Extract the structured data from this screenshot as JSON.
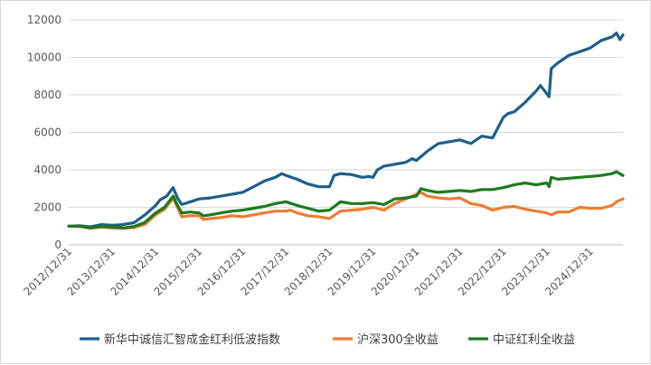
{
  "chart_data": {
    "type": "line",
    "title": "",
    "xlabel": "",
    "ylabel": "",
    "ylim": [
      0,
      12000
    ],
    "yticks": [
      0,
      2000,
      4000,
      6000,
      8000,
      10000,
      12000
    ],
    "ytick_labels": [
      "0",
      "2000",
      "4000",
      "6000",
      "8000",
      "10000",
      "12000"
    ],
    "xlim": [
      2012.997,
      2025.75
    ],
    "xticks": [
      "2012/12/31",
      "2013/12/31",
      "2014/12/31",
      "2015/12/31",
      "2016/12/31",
      "2017/12/31",
      "2018/12/31",
      "2019/12/31",
      "2020/12/31",
      "2021/12/31",
      "2022/12/31",
      "2023/12/31",
      "2024/12/31"
    ],
    "grid": "horizontal",
    "legend_position": "bottom",
    "series": [
      {
        "name": "新华中诚信汇智成金红利低波指数",
        "color": "#1f5f8b",
        "points": [
          [
            2012.997,
            1000
          ],
          [
            2013.25,
            1020
          ],
          [
            2013.5,
            960
          ],
          [
            2013.75,
            1080
          ],
          [
            2013.997,
            1040
          ],
          [
            2014.25,
            1080
          ],
          [
            2014.5,
            1180
          ],
          [
            2014.75,
            1600
          ],
          [
            2014.997,
            2100
          ],
          [
            2015.1,
            2400
          ],
          [
            2015.25,
            2600
          ],
          [
            2015.4,
            3050
          ],
          [
            2015.5,
            2500
          ],
          [
            2015.6,
            2150
          ],
          [
            2015.8,
            2300
          ],
          [
            2015.997,
            2450
          ],
          [
            2016.25,
            2500
          ],
          [
            2016.5,
            2600
          ],
          [
            2016.75,
            2700
          ],
          [
            2016.997,
            2800
          ],
          [
            2017.25,
            3100
          ],
          [
            2017.5,
            3400
          ],
          [
            2017.75,
            3600
          ],
          [
            2017.9,
            3800
          ],
          [
            2017.997,
            3700
          ],
          [
            2018.25,
            3500
          ],
          [
            2018.5,
            3250
          ],
          [
            2018.75,
            3100
          ],
          [
            2018.997,
            3100
          ],
          [
            2019.1,
            3700
          ],
          [
            2019.25,
            3800
          ],
          [
            2019.5,
            3750
          ],
          [
            2019.75,
            3600
          ],
          [
            2019.9,
            3650
          ],
          [
            2019.997,
            3600
          ],
          [
            2020.1,
            4000
          ],
          [
            2020.25,
            4200
          ],
          [
            2020.5,
            4300
          ],
          [
            2020.75,
            4400
          ],
          [
            2020.9,
            4600
          ],
          [
            2020.997,
            4500
          ],
          [
            2021.25,
            5000
          ],
          [
            2021.5,
            5400
          ],
          [
            2021.75,
            5500
          ],
          [
            2021.997,
            5600
          ],
          [
            2022.25,
            5400
          ],
          [
            2022.5,
            5800
          ],
          [
            2022.75,
            5700
          ],
          [
            2022.997,
            6800
          ],
          [
            2023.1,
            7000
          ],
          [
            2023.25,
            7100
          ],
          [
            2023.5,
            7600
          ],
          [
            2023.75,
            8200
          ],
          [
            2023.85,
            8500
          ],
          [
            2023.95,
            8200
          ],
          [
            2024.05,
            7900
          ],
          [
            2024.1,
            9400
          ],
          [
            2024.25,
            9700
          ],
          [
            2024.5,
            10100
          ],
          [
            2024.75,
            10300
          ],
          [
            2024.997,
            10500
          ],
          [
            2025.25,
            10900
          ],
          [
            2025.5,
            11100
          ],
          [
            2025.6,
            11300
          ],
          [
            2025.68,
            10950
          ],
          [
            2025.75,
            11200
          ]
        ]
      },
      {
        "name": "沪深300全收益",
        "color": "#ed7d31",
        "points": [
          [
            2012.997,
            1000
          ],
          [
            2013.25,
            980
          ],
          [
            2013.5,
            880
          ],
          [
            2013.75,
            950
          ],
          [
            2013.997,
            900
          ],
          [
            2014.25,
            880
          ],
          [
            2014.5,
            920
          ],
          [
            2014.75,
            1100
          ],
          [
            2014.997,
            1600
          ],
          [
            2015.2,
            1900
          ],
          [
            2015.4,
            2500
          ],
          [
            2015.5,
            2000
          ],
          [
            2015.6,
            1500
          ],
          [
            2015.8,
            1550
          ],
          [
            2015.997,
            1550
          ],
          [
            2016.1,
            1350
          ],
          [
            2016.25,
            1400
          ],
          [
            2016.5,
            1450
          ],
          [
            2016.75,
            1550
          ],
          [
            2016.997,
            1500
          ],
          [
            2017.25,
            1600
          ],
          [
            2017.5,
            1700
          ],
          [
            2017.75,
            1800
          ],
          [
            2017.997,
            1800
          ],
          [
            2018.1,
            1850
          ],
          [
            2018.25,
            1700
          ],
          [
            2018.5,
            1550
          ],
          [
            2018.75,
            1500
          ],
          [
            2018.997,
            1400
          ],
          [
            2019.25,
            1800
          ],
          [
            2019.5,
            1850
          ],
          [
            2019.75,
            1900
          ],
          [
            2019.997,
            2000
          ],
          [
            2020.25,
            1850
          ],
          [
            2020.5,
            2200
          ],
          [
            2020.75,
            2450
          ],
          [
            2020.9,
            2600
          ],
          [
            2020.997,
            2700
          ],
          [
            2021.1,
            2800
          ],
          [
            2021.25,
            2600
          ],
          [
            2021.5,
            2500
          ],
          [
            2021.75,
            2450
          ],
          [
            2021.997,
            2500
          ],
          [
            2022.25,
            2200
          ],
          [
            2022.5,
            2100
          ],
          [
            2022.75,
            1850
          ],
          [
            2022.997,
            2000
          ],
          [
            2023.25,
            2050
          ],
          [
            2023.5,
            1900
          ],
          [
            2023.75,
            1800
          ],
          [
            2023.997,
            1700
          ],
          [
            2024.1,
            1600
          ],
          [
            2024.25,
            1750
          ],
          [
            2024.5,
            1750
          ],
          [
            2024.75,
            2000
          ],
          [
            2024.997,
            1950
          ],
          [
            2025.25,
            1950
          ],
          [
            2025.5,
            2100
          ],
          [
            2025.6,
            2300
          ],
          [
            2025.75,
            2450
          ]
        ]
      },
      {
        "name": "中证红利全收益",
        "color": "#1e7a1e",
        "points": [
          [
            2012.997,
            1000
          ],
          [
            2013.25,
            1000
          ],
          [
            2013.5,
            900
          ],
          [
            2013.75,
            980
          ],
          [
            2013.997,
            950
          ],
          [
            2014.25,
            900
          ],
          [
            2014.5,
            980
          ],
          [
            2014.75,
            1200
          ],
          [
            2014.997,
            1700
          ],
          [
            2015.2,
            2000
          ],
          [
            2015.4,
            2600
          ],
          [
            2015.5,
            2100
          ],
          [
            2015.6,
            1700
          ],
          [
            2015.8,
            1750
          ],
          [
            2015.997,
            1700
          ],
          [
            2016.1,
            1550
          ],
          [
            2016.25,
            1600
          ],
          [
            2016.5,
            1700
          ],
          [
            2016.75,
            1800
          ],
          [
            2016.997,
            1850
          ],
          [
            2017.25,
            1950
          ],
          [
            2017.5,
            2050
          ],
          [
            2017.75,
            2200
          ],
          [
            2017.997,
            2300
          ],
          [
            2018.25,
            2100
          ],
          [
            2018.5,
            1950
          ],
          [
            2018.75,
            1800
          ],
          [
            2018.997,
            1850
          ],
          [
            2019.25,
            2300
          ],
          [
            2019.5,
            2200
          ],
          [
            2019.75,
            2200
          ],
          [
            2019.997,
            2250
          ],
          [
            2020.25,
            2150
          ],
          [
            2020.5,
            2450
          ],
          [
            2020.75,
            2500
          ],
          [
            2020.997,
            2600
          ],
          [
            2021.1,
            3000
          ],
          [
            2021.25,
            2900
          ],
          [
            2021.5,
            2800
          ],
          [
            2021.75,
            2850
          ],
          [
            2021.997,
            2900
          ],
          [
            2022.25,
            2850
          ],
          [
            2022.5,
            2950
          ],
          [
            2022.75,
            2950
          ],
          [
            2022.997,
            3050
          ],
          [
            2023.25,
            3200
          ],
          [
            2023.5,
            3300
          ],
          [
            2023.75,
            3200
          ],
          [
            2023.997,
            3300
          ],
          [
            2024.05,
            3100
          ],
          [
            2024.1,
            3600
          ],
          [
            2024.25,
            3500
          ],
          [
            2024.5,
            3550
          ],
          [
            2024.75,
            3600
          ],
          [
            2024.997,
            3650
          ],
          [
            2025.25,
            3700
          ],
          [
            2025.5,
            3800
          ],
          [
            2025.6,
            3900
          ],
          [
            2025.75,
            3700
          ]
        ]
      }
    ]
  }
}
